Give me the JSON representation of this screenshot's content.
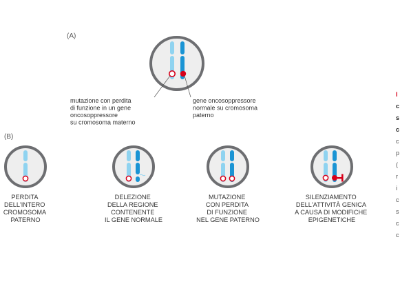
{
  "labels": {
    "a": "(A)",
    "b": "(B)"
  },
  "panel_a": {
    "left_note": [
      "mutazione con perdita",
      "di funzione in un gene",
      "oncosoppressore",
      "su cromosoma materno"
    ],
    "right_note": [
      "gene oncosoppressore",
      "normale su cromosoma",
      "paterno"
    ]
  },
  "panel_b": [
    {
      "caption": [
        "PERDITA",
        "DELL'INTERO",
        "CROMOSOMA",
        "PATERNO"
      ]
    },
    {
      "caption": [
        "DELEZIONE",
        "DELLA REGIONE",
        "CONTENENTE",
        "IL GENE NORMALE"
      ]
    },
    {
      "caption": [
        "MUTAZIONE",
        "CON PERDITA",
        "DI FUNZIONE",
        "NEL GENE PATERNO"
      ]
    },
    {
      "caption": [
        "SILENZIAMENTO",
        "DELL'ATTIVITÀ GENICA",
        "A CAUSA DI MODIFICHE",
        "EPIGENETICHE"
      ]
    }
  ],
  "side_text": {
    "red": "I",
    "bold": [
      "c",
      "s",
      "c"
    ],
    "normal": [
      "c",
      "p",
      "(",
      "r",
      "i",
      "c",
      "s",
      "c",
      "c"
    ]
  },
  "colors": {
    "maternal": "#8fd3f0",
    "paternal": "#1a94d4",
    "mutation": "#d7001a",
    "cell_ring": "#6d6e71",
    "cell_fill": "#eeeeee"
  }
}
